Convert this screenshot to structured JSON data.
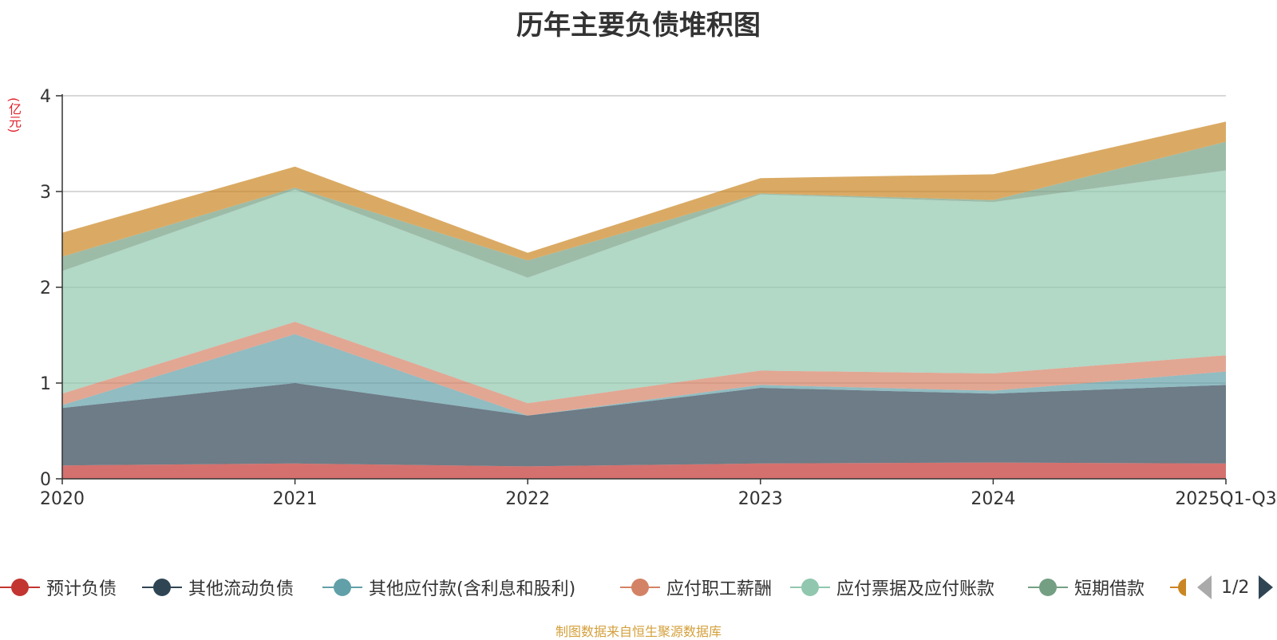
{
  "title": "历年主要负债堆积图",
  "unit": "(亿元)",
  "source": "制图数据来自恒生聚源数据库",
  "legend_page": "1/2",
  "legend_visible": [
    "预计负债",
    "其他流动负债",
    "其他应付款(含利息和股利)",
    "应付职工薪酬",
    "应付票据及应付账款",
    "短期借款"
  ],
  "chart_data": {
    "type": "area",
    "stacked": true,
    "title": "历年主要负债堆积图",
    "ylabel": "(亿元)",
    "ylim": [
      0,
      4
    ],
    "yticks": [
      0,
      1,
      2,
      3,
      4
    ],
    "grid": true,
    "legend_position": "bottom",
    "categories": [
      "2020",
      "2021",
      "2022",
      "2023",
      "2024",
      "2025Q1-Q3"
    ],
    "series": [
      {
        "name": "预计负债",
        "color": "#c23531",
        "values": [
          0.14,
          0.16,
          0.13,
          0.16,
          0.17,
          0.16
        ]
      },
      {
        "name": "其他流动负债",
        "color": "#2f4554",
        "values": [
          0.6,
          0.84,
          0.53,
          0.79,
          0.72,
          0.82
        ]
      },
      {
        "name": "其他应付款(含利息和股利)",
        "color": "#61a0a8",
        "values": [
          0.03,
          0.51,
          0.0,
          0.03,
          0.03,
          0.14
        ]
      },
      {
        "name": "应付职工薪酬",
        "color": "#d48265",
        "values": [
          0.12,
          0.13,
          0.13,
          0.15,
          0.18,
          0.17
        ]
      },
      {
        "name": "应付票据及应付账款",
        "color": "#91c7ae",
        "values": [
          1.28,
          1.38,
          1.31,
          1.84,
          1.79,
          1.93
        ]
      },
      {
        "name": "短期借款",
        "color": "#749f83",
        "values": [
          0.15,
          0.02,
          0.18,
          0.01,
          0.02,
          0.3
        ]
      },
      {
        "color": "#ca8622",
        "values": [
          0.25,
          0.22,
          0.08,
          0.16,
          0.27,
          0.21
        ]
      }
    ]
  }
}
